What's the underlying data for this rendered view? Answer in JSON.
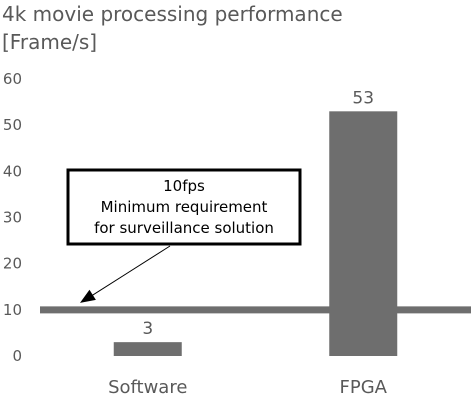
{
  "chart_data": {
    "type": "bar",
    "title": "4k movie processing performance",
    "subtitle": "[Frame/s]",
    "categories": [
      "Software",
      "FPGA"
    ],
    "values": [
      3,
      53
    ],
    "data_labels": [
      "3",
      "53"
    ],
    "ylim": [
      0,
      60
    ],
    "y_ticks": [
      0,
      10,
      20,
      30,
      40,
      50,
      60
    ],
    "y_tick_labels": [
      "0",
      "10",
      "20",
      "30",
      "40",
      "50",
      "60"
    ],
    "grid": false,
    "legend": "none",
    "reference_line": {
      "value": 10
    },
    "callout": {
      "lines": [
        "10fps",
        "Minimum requirement",
        "for surveillance solution"
      ],
      "points_to": 10
    },
    "colors": {
      "bar": "#6e6e6e",
      "reference_line": "#6e6e6e",
      "text": "#595959",
      "callout_border": "#000000",
      "arrow": "#000000"
    }
  }
}
